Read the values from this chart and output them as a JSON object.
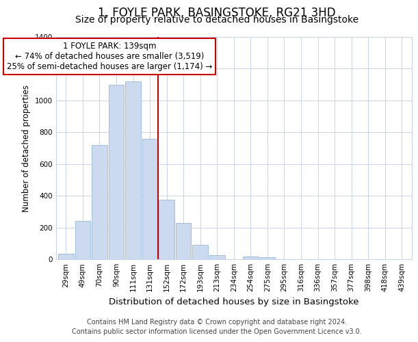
{
  "title": "1, FOYLE PARK, BASINGSTOKE, RG21 3HD",
  "subtitle": "Size of property relative to detached houses in Basingstoke",
  "xlabel": "Distribution of detached houses by size in Basingstoke",
  "ylabel": "Number of detached properties",
  "bar_labels": [
    "29sqm",
    "49sqm",
    "70sqm",
    "90sqm",
    "111sqm",
    "131sqm",
    "152sqm",
    "172sqm",
    "193sqm",
    "213sqm",
    "234sqm",
    "254sqm",
    "275sqm",
    "295sqm",
    "316sqm",
    "336sqm",
    "357sqm",
    "377sqm",
    "398sqm",
    "418sqm",
    "439sqm"
  ],
  "bar_values": [
    35,
    240,
    720,
    1100,
    1120,
    760,
    375,
    230,
    90,
    25,
    0,
    20,
    15,
    0,
    0,
    0,
    0,
    0,
    0,
    0,
    0
  ],
  "bar_color": "#ccdaf0",
  "bar_edge_color": "#99b8d8",
  "vline_x_idx": 5.5,
  "vline_color": "#cc0000",
  "annotation_line1": "1 FOYLE PARK: 139sqm",
  "annotation_line2": "← 74% of detached houses are smaller (3,519)",
  "annotation_line3": "25% of semi-detached houses are larger (1,174) →",
  "annotation_box_color": "#ffffff",
  "annotation_box_edge_color": "#cc0000",
  "ylim": [
    0,
    1400
  ],
  "yticks": [
    0,
    200,
    400,
    600,
    800,
    1000,
    1200,
    1400
  ],
  "footer_line1": "Contains HM Land Registry data © Crown copyright and database right 2024.",
  "footer_line2": "Contains public sector information licensed under the Open Government Licence v3.0.",
  "title_fontsize": 12,
  "subtitle_fontsize": 10,
  "xlabel_fontsize": 9.5,
  "ylabel_fontsize": 8.5,
  "tick_fontsize": 7.5,
  "annotation_fontsize": 8.5,
  "footer_fontsize": 7,
  "background_color": "#ffffff",
  "grid_color": "#c8d4e8"
}
